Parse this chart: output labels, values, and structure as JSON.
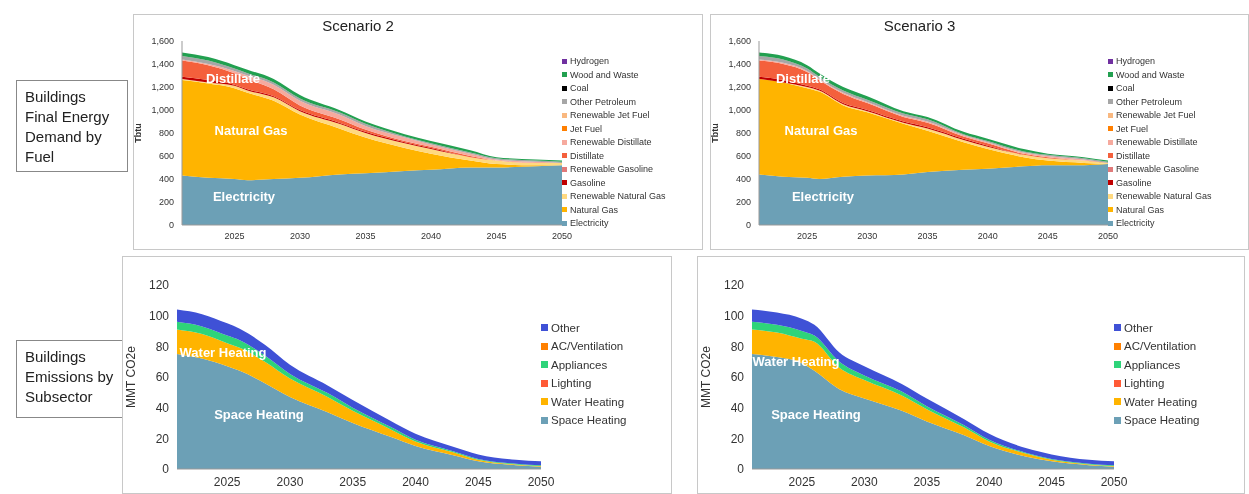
{
  "chart_data": [
    {
      "type": "other",
      "title": "Buildings Final Energy Demand by Fuel"
    },
    {
      "type": "area",
      "title": "Scenario 2",
      "ylabel": "Tbtu",
      "stacked": true,
      "legend": "right",
      "xlim": [
        2021,
        2050
      ],
      "xticks": [
        2025,
        2030,
        2035,
        2040,
        2045,
        2050
      ],
      "ylim": [
        0,
        1600
      ],
      "yticks": [
        0,
        200,
        400,
        600,
        800,
        {
          "value": 1000,
          "label": "1,000"
        },
        {
          "value": 1200,
          "label": "1,200"
        },
        {
          "value": 1400,
          "label": "1,400"
        },
        {
          "value": 1600,
          "label": "1,600"
        }
      ],
      "x": [
        2021,
        2023,
        2025,
        2026,
        2028,
        2030,
        2033,
        2035,
        2038,
        2040,
        2043,
        2045,
        2048,
        2050
      ],
      "annotations": [
        "Distillate",
        "Natural Gas",
        "Electricity"
      ],
      "series": [
        {
          "name": "Electricity",
          "color": "#6ca0b6",
          "values": [
            430,
            410,
            400,
            390,
            400,
            410,
            440,
            450,
            470,
            480,
            500,
            500,
            510,
            520
          ]
        },
        {
          "name": "Natural Gas",
          "color": "#ffb400",
          "values": [
            830,
            820,
            790,
            760,
            680,
            550,
            400,
            310,
            200,
            140,
            60,
            30,
            10,
            0
          ]
        },
        {
          "name": "Renewable Natural Gas",
          "color": "#ffd980",
          "values": [
            10,
            10,
            20,
            20,
            30,
            30,
            40,
            40,
            40,
            40,
            30,
            30,
            20,
            20
          ]
        },
        {
          "name": "Gasoline",
          "color": "#c00000",
          "values": [
            20,
            20,
            10,
            10,
            10,
            10,
            10,
            10,
            10,
            10,
            0,
            0,
            0,
            0
          ]
        },
        {
          "name": "Renewable Gasoline",
          "color": "#e07a7a",
          "values": [
            null,
            null,
            null,
            null,
            null,
            null,
            null,
            null,
            null,
            null,
            null,
            null,
            null,
            null
          ]
        },
        {
          "name": "Distillate",
          "color": "#f4603c",
          "values": [
            140,
            130,
            100,
            90,
            60,
            40,
            30,
            20,
            10,
            10,
            10,
            0,
            0,
            0
          ]
        },
        {
          "name": "Renewable Distillate",
          "color": "#f6aa9e",
          "values": [
            10,
            10,
            20,
            30,
            40,
            40,
            40,
            30,
            30,
            20,
            20,
            10,
            10,
            0
          ]
        },
        {
          "name": "Jet Fuel",
          "color": "#ff7f00",
          "values": [
            null,
            null,
            null,
            null,
            null,
            null,
            null,
            null,
            null,
            null,
            null,
            null,
            null,
            null
          ]
        },
        {
          "name": "Renewable Jet Fuel",
          "color": "#f9b880",
          "values": [
            null,
            null,
            null,
            null,
            null,
            null,
            null,
            null,
            null,
            null,
            null,
            null,
            null,
            null
          ]
        },
        {
          "name": "Other Petroleum",
          "color": "#a6a6a6",
          "values": [
            30,
            30,
            20,
            20,
            20,
            20,
            20,
            20,
            10,
            10,
            10,
            10,
            10,
            10
          ]
        },
        {
          "name": "Coal",
          "color": "#000000",
          "values": [
            null,
            null,
            null,
            null,
            null,
            null,
            null,
            null,
            null,
            null,
            null,
            null,
            null,
            null
          ]
        },
        {
          "name": "Wood and Waste",
          "color": "#22a050",
          "values": [
            30,
            30,
            30,
            30,
            30,
            30,
            20,
            20,
            20,
            20,
            20,
            10,
            10,
            10
          ]
        },
        {
          "name": "Hydrogen",
          "color": "#7030a0",
          "values": [
            null,
            null,
            null,
            null,
            null,
            null,
            null,
            null,
            null,
            null,
            null,
            null,
            null,
            null
          ]
        }
      ]
    },
    {
      "type": "area",
      "title": "Scenario 3",
      "ylabel": "Tbtu",
      "stacked": true,
      "legend": "right",
      "xlim": [
        2021,
        2050
      ],
      "xticks": [
        2025,
        2030,
        2035,
        2040,
        2045,
        2050
      ],
      "ylim": [
        0,
        1600
      ],
      "yticks": [
        0,
        200,
        400,
        600,
        800,
        {
          "value": 1000,
          "label": "1,000"
        },
        {
          "value": 1200,
          "label": "1,200"
        },
        {
          "value": 1400,
          "label": "1,400"
        },
        {
          "value": 1600,
          "label": "1,600"
        }
      ],
      "x": [
        2021,
        2023,
        2025,
        2026,
        2028,
        2030,
        2033,
        2035,
        2038,
        2040,
        2043,
        2045,
        2048,
        2050
      ],
      "annotations": [
        "Distillate",
        "Natural Gas",
        "Electricity"
      ],
      "series": [
        {
          "name": "Electricity",
          "color": "#6ca0b6",
          "values": [
            440,
            420,
            410,
            400,
            420,
            430,
            440,
            460,
            480,
            490,
            510,
            520,
            520,
            530
          ]
        },
        {
          "name": "Natural Gas",
          "color": "#ffb400",
          "values": [
            830,
            820,
            780,
            760,
            620,
            550,
            440,
            360,
            240,
            170,
            80,
            40,
            20,
            0
          ]
        },
        {
          "name": "Renewable Natural Gas",
          "color": "#ffd980",
          "values": [
            0,
            0,
            10,
            10,
            10,
            10,
            10,
            20,
            20,
            20,
            20,
            20,
            20,
            10
          ]
        },
        {
          "name": "Gasoline",
          "color": "#c00000",
          "values": [
            20,
            20,
            10,
            10,
            10,
            10,
            10,
            10,
            10,
            10,
            0,
            0,
            0,
            0
          ]
        },
        {
          "name": "Renewable Gasoline",
          "color": "#e07a7a",
          "values": [
            null,
            null,
            null,
            null,
            null,
            null,
            null,
            null,
            null,
            null,
            null,
            null,
            null,
            null
          ]
        },
        {
          "name": "Distillate",
          "color": "#f4603c",
          "values": [
            140,
            140,
            120,
            80,
            80,
            60,
            40,
            40,
            20,
            20,
            10,
            10,
            0,
            0
          ]
        },
        {
          "name": "Renewable Distillate",
          "color": "#f6aa9e",
          "values": [
            10,
            10,
            10,
            10,
            10,
            10,
            10,
            10,
            10,
            10,
            10,
            10,
            10,
            0
          ]
        },
        {
          "name": "Jet Fuel",
          "color": "#ff7f00",
          "values": [
            null,
            null,
            null,
            null,
            null,
            null,
            null,
            null,
            null,
            null,
            null,
            null,
            null,
            null
          ]
        },
        {
          "name": "Renewable Jet Fuel",
          "color": "#f9b880",
          "values": [
            null,
            null,
            null,
            null,
            null,
            null,
            null,
            null,
            null,
            null,
            null,
            null,
            null,
            null
          ]
        },
        {
          "name": "Other Petroleum",
          "color": "#a6a6a6",
          "values": [
            30,
            30,
            20,
            20,
            20,
            20,
            20,
            20,
            10,
            10,
            10,
            10,
            10,
            10
          ]
        },
        {
          "name": "Coal",
          "color": "#000000",
          "values": [
            null,
            null,
            null,
            null,
            null,
            null,
            null,
            null,
            null,
            null,
            null,
            null,
            null,
            null
          ]
        },
        {
          "name": "Wood and Waste",
          "color": "#22a050",
          "values": [
            30,
            30,
            30,
            30,
            30,
            30,
            20,
            20,
            20,
            20,
            20,
            10,
            10,
            10
          ]
        },
        {
          "name": "Hydrogen",
          "color": "#7030a0",
          "values": [
            null,
            null,
            null,
            null,
            null,
            null,
            null,
            null,
            null,
            null,
            null,
            null,
            null,
            null
          ]
        }
      ]
    },
    {
      "type": "other",
      "title": "Buildings Emissions by Subsector"
    },
    {
      "type": "area",
      "ylabel": "MMT CO2e",
      "stacked": true,
      "legend": "right",
      "xlim": [
        2021,
        2050
      ],
      "xticks": [
        2025,
        2030,
        2035,
        2040,
        2045,
        2050
      ],
      "ylim": [
        0,
        120
      ],
      "yticks": [
        0,
        20,
        40,
        60,
        80,
        100,
        120
      ],
      "x": [
        2021,
        2023,
        2025,
        2026,
        2028,
        2030,
        2033,
        2035,
        2038,
        2040,
        2043,
        2045,
        2048,
        2050
      ],
      "annotations": [
        "Water Heating",
        "Space Heating"
      ],
      "series": [
        {
          "name": "Space Heating",
          "color": "#6ca0b6",
          "values": [
            75,
            72,
            67,
            64,
            56,
            47,
            37,
            30,
            21,
            15,
            9,
            5,
            2.5,
            1.5
          ]
        },
        {
          "name": "Water Heating",
          "color": "#ffb400",
          "values": [
            16,
            16,
            15,
            15,
            14,
            12,
            10,
            8,
            5,
            3,
            2,
            1,
            0.5,
            0.5
          ]
        },
        {
          "name": "Lighting",
          "color": "#ff5a36",
          "values": [
            null,
            null,
            null,
            null,
            null,
            null,
            null,
            null,
            null,
            null,
            null,
            null,
            null,
            null
          ]
        },
        {
          "name": "Appliances",
          "color": "#2ed47a",
          "values": [
            5,
            5,
            5,
            5,
            4,
            3,
            2.5,
            2,
            1.5,
            1,
            0.5,
            0.5,
            0.5,
            0.5
          ]
        },
        {
          "name": "AC/Ventilation",
          "color": "#ff8000",
          "values": [
            null,
            null,
            null,
            null,
            null,
            null,
            null,
            null,
            null,
            null,
            null,
            null,
            null,
            null
          ]
        },
        {
          "name": "Other",
          "color": "#3f51d6",
          "values": [
            8,
            8,
            8,
            7.5,
            7,
            6,
            5,
            5,
            4,
            4,
            3,
            3,
            2.5,
            2.5
          ]
        }
      ]
    },
    {
      "type": "area",
      "ylabel": "MMT CO2e",
      "stacked": true,
      "legend": "right",
      "xlim": [
        2021,
        2050
      ],
      "xticks": [
        2025,
        2030,
        2035,
        2040,
        2045,
        2050
      ],
      "ylim": [
        0,
        120
      ],
      "yticks": [
        0,
        20,
        40,
        60,
        80,
        100,
        120
      ],
      "x": [
        2021,
        2023,
        2025,
        2026,
        2028,
        2030,
        2033,
        2035,
        2038,
        2040,
        2043,
        2045,
        2048,
        2050
      ],
      "annotations": [
        "Water Heating",
        "Space Heating"
      ],
      "series": [
        {
          "name": "Space Heating",
          "color": "#6ca0b6",
          "values": [
            75,
            73,
            69,
            64,
            52,
            46,
            38,
            31,
            22,
            15,
            8,
            5,
            2.5,
            1.5
          ]
        },
        {
          "name": "Water Heating",
          "color": "#ffb400",
          "values": [
            16,
            16,
            16,
            19,
            14,
            12,
            10,
            8,
            5,
            3,
            2,
            1,
            0.5,
            0.5
          ]
        },
        {
          "name": "Lighting",
          "color": "#ff5a36",
          "values": [
            null,
            null,
            null,
            null,
            null,
            null,
            null,
            null,
            null,
            null,
            null,
            null,
            null,
            null
          ]
        },
        {
          "name": "Appliances",
          "color": "#2ed47a",
          "values": [
            5,
            5,
            5,
            4,
            4,
            3,
            2.5,
            2,
            1.5,
            1,
            0.5,
            0.5,
            0.5,
            0.5
          ]
        },
        {
          "name": "AC/Ventilation",
          "color": "#ff8000",
          "values": [
            null,
            null,
            null,
            null,
            null,
            null,
            null,
            null,
            null,
            null,
            null,
            null,
            null,
            null
          ]
        },
        {
          "name": "Other",
          "color": "#3f51d6",
          "values": [
            8,
            8,
            8,
            7,
            6,
            6,
            5,
            5,
            4,
            4,
            3,
            3,
            2.5,
            2.5
          ]
        }
      ]
    }
  ]
}
